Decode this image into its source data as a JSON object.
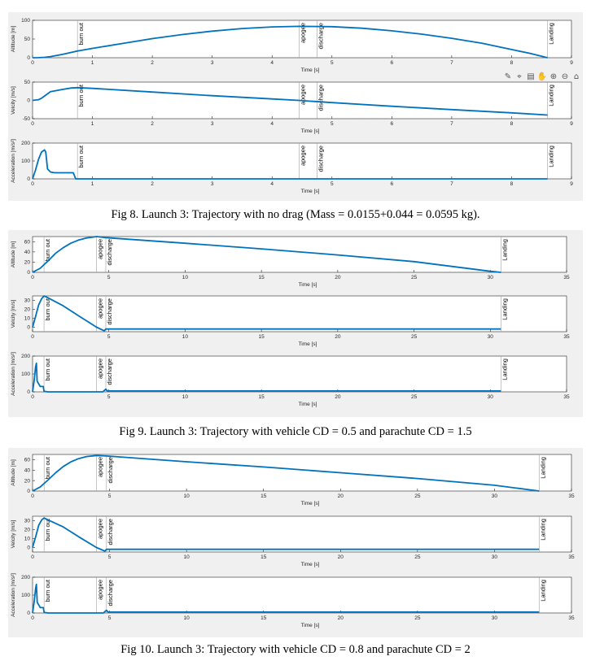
{
  "toolbar": {
    "icons": [
      "brush-icon",
      "data-cursor-icon",
      "data-tips-icon",
      "pan-icon",
      "zoom-in-icon",
      "zoom-out-icon",
      "home-icon"
    ]
  },
  "colors": {
    "line": "#0072bd",
    "marker": "#a0a0a0",
    "panel": "#f0f0f0",
    "axes_bg": "#ffffff"
  },
  "figures": [
    {
      "caption": "Fig 8. Launch 3: Trajectory with no drag (Mass = 0.0155+0.044 = 0.0595 kg).",
      "xlim": [
        0,
        9
      ],
      "xticks": [
        0,
        1,
        2,
        3,
        4,
        5,
        6,
        7,
        8,
        9
      ],
      "xlabel": "Time [s]",
      "events": [
        {
          "t": 0.75,
          "label": "burn out"
        },
        {
          "t": 4.45,
          "label": "apogee"
        },
        {
          "t": 4.75,
          "label": "discharge"
        },
        {
          "t": 8.6,
          "label": "Landing"
        }
      ],
      "subplots": [
        {
          "ylabel": "Altitude [m]",
          "ylim": [
            0,
            100
          ],
          "yticks": [
            0,
            50,
            100
          ],
          "x": [
            0,
            0.1,
            0.2,
            0.3,
            0.4,
            0.5,
            0.75,
            1,
            1.5,
            2,
            2.5,
            3,
            3.5,
            4,
            4.45,
            5,
            5.5,
            6,
            6.5,
            7,
            7.5,
            8,
            8.3,
            8.6
          ],
          "y": [
            0,
            0.3,
            1,
            3,
            6,
            9,
            18,
            25,
            38,
            51,
            62,
            71,
            78,
            82.5,
            84,
            83,
            79,
            72,
            63,
            52,
            39,
            22,
            12,
            0
          ]
        },
        {
          "ylabel": "Velcity [m/s]",
          "ylim": [
            -50,
            50
          ],
          "yticks": [
            -50,
            0,
            50
          ],
          "x": [
            0,
            0.1,
            0.15,
            0.2,
            0.25,
            0.3,
            0.5,
            0.65,
            0.75,
            1,
            2,
            3,
            4,
            4.45,
            5,
            6,
            7,
            8,
            8.6
          ],
          "y": [
            0,
            2,
            6,
            12,
            18,
            24,
            30,
            34,
            35,
            33,
            23,
            13,
            4,
            0,
            -6,
            -16,
            -25,
            -34,
            -40
          ]
        },
        {
          "ylabel": "Acceleration [m/s²]",
          "ylim": [
            0,
            200
          ],
          "yticks": [
            0,
            100,
            200
          ],
          "x": [
            0,
            0.05,
            0.1,
            0.15,
            0.2,
            0.22,
            0.25,
            0.3,
            0.35,
            0.4,
            0.5,
            0.6,
            0.68,
            0.72,
            0.75,
            1,
            5,
            8.6
          ],
          "y": [
            0,
            50,
            110,
            150,
            162,
            150,
            55,
            38,
            35,
            34,
            34,
            34,
            34,
            0,
            0,
            0,
            0,
            0
          ]
        }
      ]
    },
    {
      "caption": "Fig 9. Launch 3: Trajectory with vehicle CD = 0.5 and parachute CD = 1.5",
      "xlim": [
        0,
        35
      ],
      "xticks": [
        0,
        5,
        10,
        15,
        20,
        25,
        30,
        35
      ],
      "xlabel": "Time [s]",
      "events": [
        {
          "t": 0.75,
          "label": "burn out"
        },
        {
          "t": 4.2,
          "label": "apogee"
        },
        {
          "t": 4.8,
          "label": "discharge"
        },
        {
          "t": 30.7,
          "label": "Landing"
        }
      ],
      "subplots": [
        {
          "ylabel": "Altitude [m]",
          "ylim": [
            0,
            70
          ],
          "yticks": [
            0,
            20,
            40,
            60
          ],
          "x": [
            0,
            0.5,
            1,
            1.5,
            2,
            2.5,
            3,
            3.5,
            4.2,
            4.8,
            10,
            15,
            20,
            25,
            30,
            30.7
          ],
          "y": [
            0,
            8,
            22,
            37,
            48,
            57,
            63,
            67,
            70,
            68,
            57,
            46,
            34,
            21,
            2,
            0
          ]
        },
        {
          "ylabel": "Velcity [m/s]",
          "ylim": [
            -5,
            35
          ],
          "yticks": [
            0,
            10,
            20,
            30
          ],
          "x": [
            0,
            0.2,
            0.4,
            0.6,
            0.75,
            1,
            2,
            3,
            4.2,
            4.7,
            4.8,
            5,
            10,
            30.7
          ],
          "y": [
            0,
            12,
            25,
            32,
            35,
            33,
            24,
            13,
            0,
            -4,
            -2,
            -2,
            -2,
            -2
          ]
        },
        {
          "ylabel": "Acceleration [m/s²]",
          "ylim": [
            0,
            200
          ],
          "yticks": [
            0,
            100,
            200
          ],
          "x": [
            0,
            0.1,
            0.2,
            0.25,
            0.3,
            0.5,
            0.7,
            0.75,
            1,
            4.6,
            4.8,
            4.9,
            5,
            10,
            30.7
          ],
          "y": [
            0,
            60,
            140,
            160,
            60,
            30,
            30,
            3,
            0,
            0,
            15,
            5,
            5,
            5,
            5
          ]
        }
      ]
    },
    {
      "caption": "Fig 10. Launch 3: Trajectory with vehicle CD = 0.8 and parachute CD = 2",
      "xlim": [
        0,
        35
      ],
      "xticks": [
        0,
        5,
        10,
        15,
        20,
        25,
        30,
        35
      ],
      "xlabel": "Time [s]",
      "events": [
        {
          "t": 0.75,
          "label": "burn out"
        },
        {
          "t": 4.15,
          "label": "apogee"
        },
        {
          "t": 4.8,
          "label": "discharge"
        },
        {
          "t": 32.9,
          "label": "Landing"
        }
      ],
      "subplots": [
        {
          "ylabel": "Altitude [m]",
          "ylim": [
            0,
            70
          ],
          "yticks": [
            0,
            20,
            40,
            60
          ],
          "x": [
            0,
            0.5,
            1,
            1.5,
            2,
            2.5,
            3,
            3.5,
            4.15,
            4.8,
            10,
            15,
            20,
            25,
            30,
            32.9
          ],
          "y": [
            0,
            8,
            21,
            35,
            47,
            56,
            62,
            66,
            68,
            67,
            56,
            46,
            35,
            24,
            11,
            0
          ]
        },
        {
          "ylabel": "Velcity [m/s]",
          "ylim": [
            -5,
            35
          ],
          "yticks": [
            0,
            10,
            20,
            30
          ],
          "x": [
            0,
            0.2,
            0.4,
            0.6,
            0.75,
            1,
            2,
            3,
            4.15,
            4.7,
            4.8,
            5,
            10,
            32.9
          ],
          "y": [
            0,
            12,
            25,
            31,
            33,
            31,
            23,
            12,
            0,
            -4,
            -2,
            -2,
            -2,
            -2
          ]
        },
        {
          "ylabel": "Acceleration [m/s²]",
          "ylim": [
            0,
            200
          ],
          "yticks": [
            0,
            100,
            200
          ],
          "x": [
            0,
            0.1,
            0.2,
            0.25,
            0.3,
            0.5,
            0.7,
            0.75,
            1,
            4.6,
            4.8,
            4.9,
            5,
            10,
            32.9
          ],
          "y": [
            0,
            60,
            140,
            160,
            60,
            30,
            30,
            3,
            0,
            0,
            15,
            5,
            5,
            5,
            5
          ]
        }
      ]
    }
  ],
  "chart_data": [
    {
      "type": "line",
      "title": "Fig 8. Launch 3: Trajectory with no drag (Mass = 0.0155+0.044 = 0.0595 kg).",
      "xlabel": "Time [s]",
      "xlim": [
        0,
        9
      ],
      "series_names": [
        "Altitude [m]",
        "Velcity [m/s]",
        "Acceleration [m/s²]"
      ]
    },
    {
      "type": "line",
      "title": "Fig 9. Launch 3: Trajectory with vehicle CD = 0.5 and parachute CD = 1.5",
      "xlabel": "Time [s]",
      "xlim": [
        0,
        35
      ],
      "series_names": [
        "Altitude [m]",
        "Velcity [m/s]",
        "Acceleration [m/s²]"
      ]
    },
    {
      "type": "line",
      "title": "Fig 10. Launch 3: Trajectory with vehicle CD = 0.8 and parachute CD = 2",
      "xlabel": "Time [s]",
      "xlim": [
        0,
        35
      ],
      "series_names": [
        "Altitude [m]",
        "Velcity [m/s]",
        "Acceleration [m/s²]"
      ]
    }
  ]
}
